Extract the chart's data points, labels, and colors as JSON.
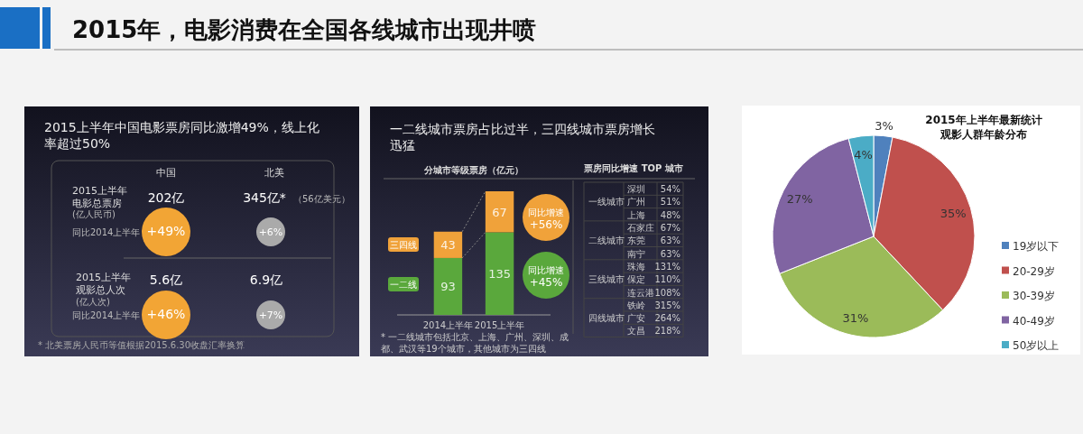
{
  "chart_data": [
    {
      "type": "other",
      "title": "2015年，电影消费在全国各线城市出现井喷"
    },
    {
      "type": "other",
      "title": "2015上半年中国电影票房同比激增49%，线上化率超过50%",
      "annotations": [
        "中国",
        "北美",
        "2015上半年",
        "电影总票房",
        "(亿人民币)",
        "同比2014上半年",
        "202亿",
        "345亿*",
        "（56亿美元）",
        "+49%",
        "+6%",
        "2015上半年",
        "观影总人次",
        "(亿人次)",
        "同比2014上半年",
        "5.6亿",
        "6.9亿",
        "+46%",
        "+7%",
        "* 北美票房人民币等值根据2015.6.30收盘汇率换算"
      ]
    },
    {
      "type": "bar",
      "stacked": true,
      "title": "一二线城市票房占比过半，三四线城市票房增长迅猛",
      "subtitle": "分城市等级票房（亿元）",
      "categories": [
        "2014上半年",
        "2015上半年"
      ],
      "data_labels": true,
      "legend": "left",
      "series": [
        {
          "name": "一二线",
          "color": "#5aa83c",
          "values": [
            93,
            135
          ]
        },
        {
          "name": "三四线",
          "color": "#f0a23a",
          "values": [
            43,
            67
          ]
        }
      ],
      "annotations": [
        "同比增速 +56%",
        "同比增速 +45%",
        "* 一二线城市包括北京、上海、广州、深圳、成都、武汉等19个城市，其他城市为三四线"
      ]
    },
    {
      "type": "other",
      "title": "票房同比增速 TOP 城市",
      "categories": [
        "深圳",
        "广州",
        "上海",
        "石家庄",
        "东莞",
        "南宁",
        "珠海",
        "保定",
        "连云港",
        "铁岭",
        "广安",
        "文昌"
      ],
      "values": [
        54,
        51,
        48,
        67,
        63,
        63,
        131,
        110,
        108,
        315,
        264,
        218
      ],
      "value_labels": [
        "54%",
        "51%",
        "48%",
        "67%",
        "63%",
        "63%",
        "131%",
        "110%",
        "108%",
        "315%",
        "264%",
        "218%"
      ],
      "annotations": [
        "一线城市",
        "二线城市",
        "三线城市",
        "四线城市"
      ]
    },
    {
      "type": "pie",
      "title": "2015年上半年最新统计观影人群年龄分布",
      "categories": [
        "19岁以下",
        "20-29岁",
        "30-39岁",
        "40-49岁",
        "50岁以上"
      ],
      "values": [
        3,
        35,
        31,
        27,
        4
      ],
      "value_labels": [
        "3%",
        "35%",
        "31%",
        "27%",
        "4%"
      ],
      "colors": [
        "#4f81bd",
        "#c0504d",
        "#9bbb59",
        "#8064a2",
        "#4bacc6"
      ],
      "data_labels": true,
      "legend": "right"
    }
  ]
}
